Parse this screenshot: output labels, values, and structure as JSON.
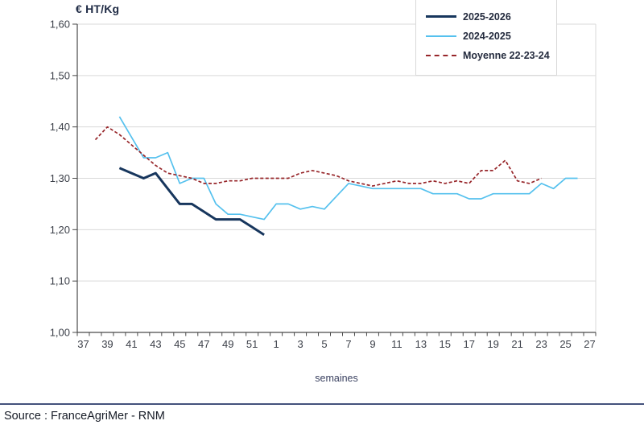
{
  "footer": {
    "source_text": "Source : FranceAgriMer - RNM"
  },
  "chart_data": {
    "type": "line",
    "y_axis_title": "€ HT/Kg",
    "x_axis_label": "semaines",
    "grid": "horizontal",
    "legend_position": "top-right",
    "ylim": [
      1.0,
      1.6
    ],
    "y_step": 0.1,
    "y_tick_labels": [
      "1,00",
      "1,10",
      "1,20",
      "1,30",
      "1,40",
      "1,50",
      "1,60"
    ],
    "weeks": [
      37,
      38,
      39,
      40,
      41,
      42,
      43,
      44,
      45,
      46,
      47,
      48,
      49,
      50,
      51,
      52,
      1,
      2,
      3,
      4,
      5,
      6,
      7,
      8,
      9,
      10,
      11,
      12,
      13,
      14,
      15,
      16,
      17,
      18,
      19,
      20,
      21,
      22,
      23,
      24,
      25,
      26,
      27
    ],
    "colors": {
      "grid": "#D9D9D9",
      "axis": "#4A4A4A",
      "tick_text": "#3C4049"
    },
    "series": [
      {
        "name": "2025-2026",
        "color": "#17365D",
        "line_style": "solid",
        "line_width": 3,
        "values": [
          null,
          null,
          null,
          1.32,
          1.31,
          1.3,
          1.31,
          1.28,
          1.25,
          1.25,
          1.235,
          1.22,
          1.22,
          1.22,
          1.205,
          1.19,
          null,
          null,
          null,
          null,
          null,
          null,
          null,
          null,
          null,
          null,
          null,
          null,
          null,
          null,
          null,
          null,
          null,
          null,
          null,
          null,
          null,
          null,
          null,
          null,
          null,
          null,
          null
        ]
      },
      {
        "name": "2024-2025",
        "color": "#55C1EE",
        "line_style": "solid",
        "line_width": 1.7,
        "values": [
          null,
          null,
          null,
          1.42,
          1.38,
          1.34,
          1.34,
          1.35,
          1.29,
          1.3,
          1.3,
          1.25,
          1.23,
          1.23,
          1.225,
          1.22,
          1.25,
          1.25,
          1.24,
          1.245,
          1.24,
          1.265,
          1.29,
          1.285,
          1.28,
          1.28,
          1.28,
          1.28,
          1.28,
          1.27,
          1.27,
          1.27,
          1.26,
          1.26,
          1.27,
          1.27,
          1.27,
          1.27,
          1.29,
          1.28,
          1.3,
          1.3,
          null
        ]
      },
      {
        "name": "Moyenne 22-23-24",
        "color": "#97262A",
        "line_style": "dashed",
        "line_width": 1.7,
        "values": [
          null,
          1.375,
          1.4,
          1.385,
          1.365,
          1.345,
          1.325,
          1.31,
          1.305,
          1.3,
          1.29,
          1.29,
          1.295,
          1.295,
          1.3,
          1.3,
          1.3,
          1.3,
          1.31,
          1.315,
          1.31,
          1.305,
          1.295,
          1.29,
          1.285,
          1.29,
          1.295,
          1.29,
          1.29,
          1.295,
          1.29,
          1.295,
          1.29,
          1.315,
          1.315,
          1.335,
          1.295,
          1.29,
          1.3,
          null,
          null,
          null,
          null
        ]
      }
    ]
  }
}
